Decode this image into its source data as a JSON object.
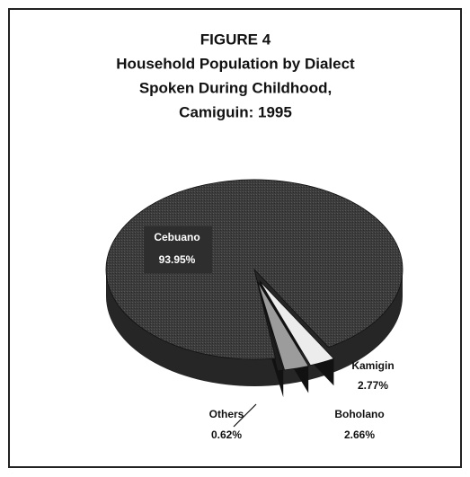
{
  "chart_data": {
    "type": "pie",
    "title": [
      "FIGURE 4",
      "Household Population by Dialect",
      "Spoken During Childhood,",
      "Camiguin: 1995"
    ],
    "categories": [
      "Cebuano",
      "Kamigin",
      "Boholano",
      "Others"
    ],
    "values": [
      93.95,
      2.77,
      2.66,
      0.62
    ],
    "value_labels": [
      "93.95%",
      "2.77%",
      "2.66%",
      "0.62%"
    ],
    "colors": [
      "#3c3c3c",
      "#ececec",
      "#9c9c9c",
      "#1e1e1e"
    ]
  }
}
